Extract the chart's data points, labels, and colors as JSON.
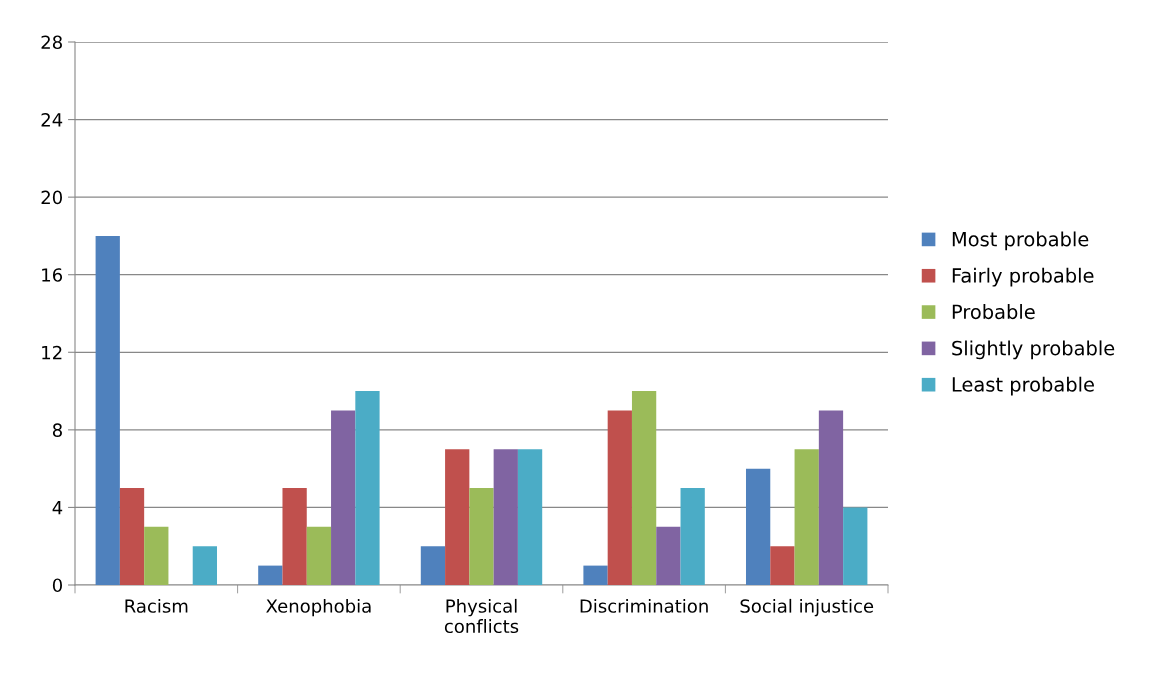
{
  "chart_data": {
    "type": "bar",
    "categories": [
      "Racism",
      "Xenophobia",
      "Physical\nconflicts",
      "Discrimination",
      "Social injustice"
    ],
    "series": [
      {
        "name": "Most probable",
        "color": "#4f81bd",
        "values": [
          18,
          1,
          2,
          1,
          6
        ]
      },
      {
        "name": "Fairly probable",
        "color": "#c0504d",
        "values": [
          5,
          5,
          7,
          9,
          2
        ]
      },
      {
        "name": "Probable",
        "color": "#9bbb59",
        "values": [
          3,
          3,
          5,
          10,
          7
        ]
      },
      {
        "name": "Slightly probable",
        "color": "#8064a2",
        "values": [
          0,
          9,
          7,
          3,
          9
        ]
      },
      {
        "name": "Least probable",
        "color": "#4bacc6",
        "values": [
          2,
          10,
          7,
          5,
          4
        ]
      }
    ],
    "ylim": [
      0,
      28
    ],
    "yticks": [
      0,
      4,
      8,
      12,
      16,
      20,
      24,
      28
    ],
    "grid": "y",
    "legend": "right"
  }
}
